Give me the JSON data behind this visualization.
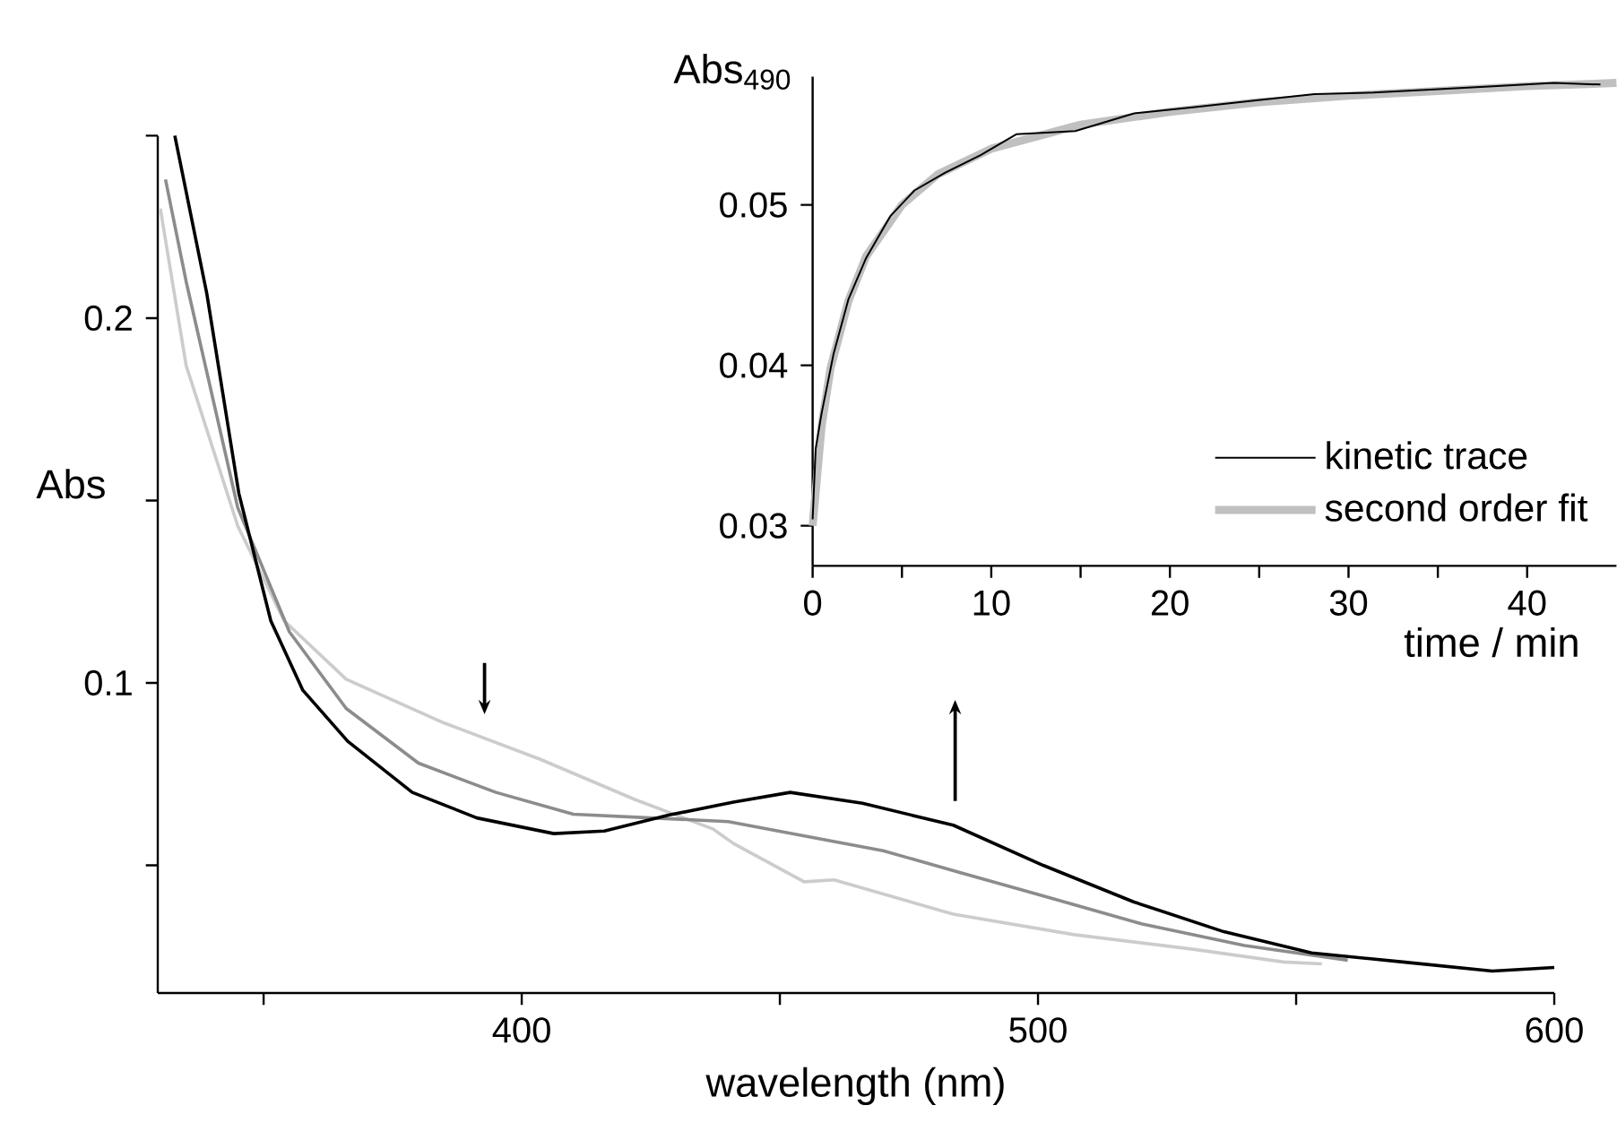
{
  "chart_data": [
    {
      "type": "line",
      "xlabel": "wavelength (nm)",
      "ylabel": "Abs",
      "xlim": [
        329.5,
        600
      ],
      "ylim": [
        0.015,
        0.25
      ],
      "xticks": [
        {
          "value": 350,
          "label": null
        },
        400,
        {
          "value": 450,
          "label": null
        },
        500,
        {
          "value": 550,
          "label": null
        },
        600
      ],
      "yticks": [
        {
          "value": 0.05,
          "label": null
        },
        0.1,
        {
          "value": 0.15,
          "label": null
        },
        0.2,
        {
          "value": 0.25,
          "label": null
        }
      ],
      "series": [
        {
          "color": "#cccccc",
          "x": [
            330,
            335,
            345,
            354,
            366,
            385,
            403.7,
            422,
            437,
            441,
            454.7,
            460.5,
            483.6,
            507,
            530,
            547.6,
            555
          ],
          "values": [
            0.23,
            0.187,
            0.143,
            0.117,
            0.101,
            0.089,
            0.079,
            0.068,
            0.06,
            0.056,
            0.0455,
            0.046,
            0.0366,
            0.031,
            0.027,
            0.0235,
            0.023
          ]
        },
        {
          "color": "#8c8c8c",
          "x": [
            331,
            335,
            345,
            355,
            366,
            380,
            395,
            410,
            425,
            440,
            455,
            470,
            485,
            500,
            520,
            540,
            560
          ],
          "values": [
            0.238,
            0.21,
            0.148,
            0.114,
            0.093,
            0.078,
            0.07,
            0.064,
            0.063,
            0.062,
            0.058,
            0.054,
            0.048,
            0.042,
            0.034,
            0.028,
            0.024
          ]
        },
        {
          "color": "#000000",
          "x": [
            332.8,
            339,
            345.2,
            351.4,
            357.6,
            366.3,
            378.8,
            391.3,
            406.2,
            416,
            428.6,
            441,
            452,
            466,
            483.6,
            501,
            518.5,
            536,
            553,
            570.7,
            588,
            600
          ],
          "values": [
            0.25,
            0.2067,
            0.152,
            0.117,
            0.098,
            0.084,
            0.07,
            0.063,
            0.0587,
            0.0594,
            0.0638,
            0.0673,
            0.07,
            0.067,
            0.061,
            0.05,
            0.04,
            0.0318,
            0.026,
            0.0235,
            0.021,
            0.022
          ]
        }
      ]
    },
    {
      "type": "line",
      "xlabel": "time / min",
      "ylabel": "Abs$_{490}$",
      "xlim": [
        0,
        45
      ],
      "ylim": [
        0.0275,
        0.058
      ],
      "legend": "bottom right",
      "xticks": [
        0,
        {
          "value": 5,
          "label": null
        },
        10,
        {
          "value": 15,
          "label": null
        },
        20,
        {
          "value": 25,
          "label": null
        },
        30,
        {
          "value": 35,
          "label": null
        },
        40
      ],
      "yticks": [
        0.03,
        0.04,
        0.05
      ],
      "series": [
        {
          "name": "kinetic trace",
          "color": "#000000",
          "x": [
            0,
            0.17,
            0.5,
            1.17,
            2,
            3,
            4.35,
            5.7,
            7.4,
            9.4,
            11.4,
            14.7,
            18,
            21.4,
            24.7,
            28.1,
            31.4,
            34.8,
            38.1,
            41.5,
            44.1
          ],
          "values": [
            0.0304,
            0.0348,
            0.037,
            0.0407,
            0.0441,
            0.0467,
            0.0493,
            0.0509,
            0.052,
            0.0531,
            0.0544,
            0.0546,
            0.0557,
            0.0561,
            0.0565,
            0.0569,
            0.057,
            0.0572,
            0.0574,
            0.0576,
            0.0575
          ]
        },
        {
          "name": "second order fit",
          "color": "#c0c0c0",
          "x": [
            0,
            0.5,
            1,
            2,
            3,
            5,
            7,
            10,
            15,
            20,
            25,
            30,
            35,
            40,
            45
          ],
          "values": [
            0.03,
            0.0362,
            0.0398,
            0.044,
            0.0468,
            0.05,
            0.0519,
            0.0535,
            0.055,
            0.0558,
            0.0564,
            0.0568,
            0.0571,
            0.0574,
            0.0576
          ]
        }
      ]
    }
  ]
}
